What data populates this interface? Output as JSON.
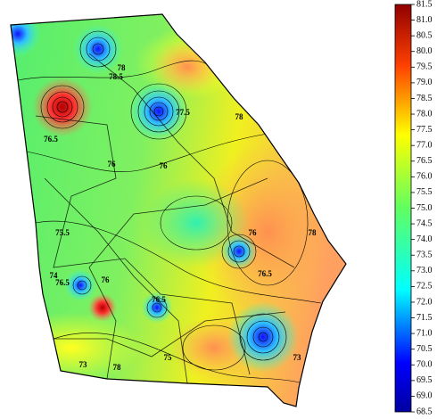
{
  "colorbar": {
    "ticks": [
      "81.5",
      "81.0",
      "80.5",
      "80.0",
      "79.5",
      "79.0",
      "78.5",
      "78.0",
      "77.5",
      "77.0",
      "76.5",
      "76.0",
      "75.5",
      "75.0",
      "74.5",
      "74.0",
      "73.5",
      "73.0",
      "72.5",
      "72.0",
      "71.5",
      "71.0",
      "70.5",
      "70.0",
      "69.5",
      "69.0",
      "68.5"
    ]
  },
  "contour_labels": [
    "78",
    "78.5",
    "78",
    "77.5",
    "76.5",
    "76",
    "76",
    "75.5",
    "76",
    "74",
    "78",
    "76.5",
    "73",
    "76.5",
    "73",
    "76",
    "78",
    "75",
    "76.5"
  ]
}
